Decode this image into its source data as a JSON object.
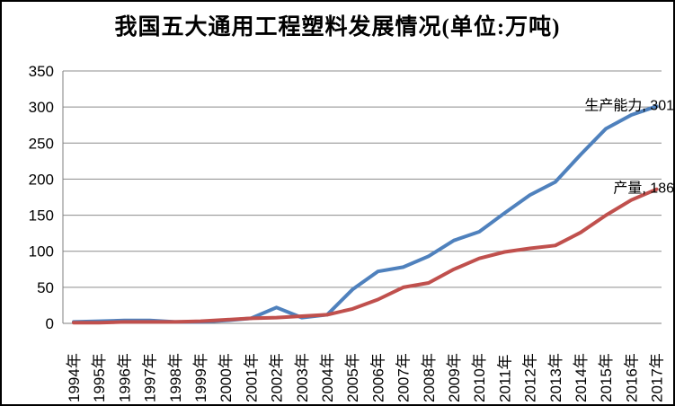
{
  "title": "我国五大通用工程塑料发展情况(单位:万吨)",
  "chart_data": {
    "type": "line",
    "title": "我国五大通用工程塑料发展情况(单位:万吨)",
    "categories": [
      "1994年",
      "1995年",
      "1996年",
      "1997年",
      "1998年",
      "1999年",
      "2000年",
      "2001年",
      "2002年",
      "2003年",
      "2004年",
      "2005年",
      "2006年",
      "2007年",
      "2008年",
      "2009年",
      "2010年",
      "2011年",
      "2012年",
      "2013年",
      "2014年",
      "2015年",
      "2016年",
      "2017年"
    ],
    "series": [
      {
        "id": "capacity",
        "name": "生产能力",
        "color": "#4F81BD",
        "values": [
          2,
          3,
          4,
          4,
          2,
          2,
          4,
          7,
          22,
          8,
          12,
          47,
          72,
          78,
          93,
          115,
          127,
          153,
          178,
          196,
          234,
          270,
          289,
          301
        ],
        "end_label": "生产能力, 301"
      },
      {
        "id": "output",
        "name": "产量",
        "color": "#C0504D",
        "values": [
          1,
          1,
          2,
          2,
          2,
          3,
          5,
          7,
          8,
          10,
          12,
          20,
          33,
          50,
          56,
          75,
          90,
          99,
          104,
          108,
          126,
          150,
          171,
          186
        ],
        "end_label": "产量, 186"
      }
    ],
    "yticks": [
      0,
      50,
      100,
      150,
      200,
      250,
      300,
      350
    ],
    "ylim": [
      0,
      350
    ],
    "xlabel": "",
    "ylabel": "",
    "grid": true,
    "legend_position": "none",
    "gridline_color": "#8C8C8C",
    "axis_color": "#7F7F7F"
  }
}
